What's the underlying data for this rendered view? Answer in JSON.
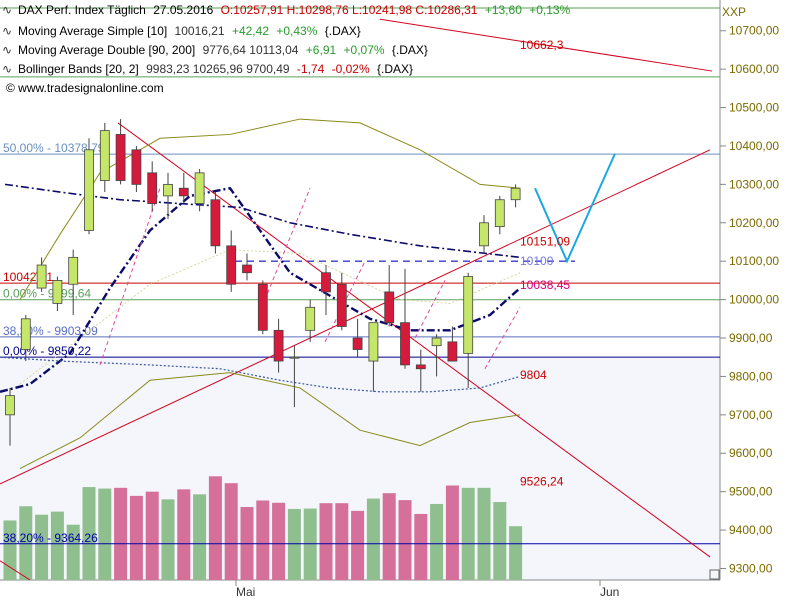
{
  "instrument": {
    "name": "DAX Perf. Index Täglich",
    "date": "27.05.2016",
    "ohlc": "O:10257,91  H:10298,76  L:10241,98  C:10286,31",
    "change": "+13,60",
    "change_pct": "+0,13%",
    "symbol": "XXP"
  },
  "indicators": [
    {
      "name": "Moving Average Simple [10]",
      "values": "10016,21",
      "change": "+42,42",
      "pct": "+0,43%",
      "sym": "{.DAX}",
      "icon": "wave-icon"
    },
    {
      "name": "Moving Average Double [90, 200]",
      "values": "9776,64  10113,04",
      "change": "+6,91",
      "pct": "+0,07%",
      "sym": "{.DAX}",
      "icon": "wave-icon"
    },
    {
      "name": "Bollinger Bands [20, 2]",
      "values": "9983,23  10265,96  9700,49",
      "change": "-1,74",
      "pct": "-0,02%",
      "sym": "{.DAX}",
      "icon": "wave-icon"
    }
  ],
  "source": "© www.tradesignalonline.com",
  "colors": {
    "up": "#c6e66a",
    "down": "#d61a3c",
    "vol_up": "#8fbf8f",
    "vol_down": "#d4709a",
    "axis_text": "#7a6a00",
    "trend": "#d6001c",
    "forecast": "#1ca8e0"
  },
  "chart_data": {
    "type": "candlestick",
    "yaxis": {
      "ticks": [
        "10700,00",
        "10600,00",
        "10500,00",
        "10400,00",
        "10300,00",
        "10200,00",
        "10100,00",
        "10000,00",
        "9900,00",
        "9800,00",
        "9700,00",
        "9600,00",
        "9500,00",
        "9400,00",
        "9300,00"
      ],
      "range": [
        9270,
        10780
      ]
    },
    "xaxis": {
      "labels": [
        "Mai",
        "Jun"
      ]
    },
    "candles": [
      {
        "o": 9700,
        "h": 9770,
        "l": 9620,
        "c": 9750
      },
      {
        "o": 9870,
        "h": 9960,
        "l": 9840,
        "c": 9950
      },
      {
        "o": 10030,
        "h": 10110,
        "l": 10020,
        "c": 10090
      },
      {
        "o": 9990,
        "h": 10060,
        "l": 9970,
        "c": 10050
      },
      {
        "o": 10040,
        "h": 10130,
        "l": 9960,
        "c": 10110
      },
      {
        "o": 10180,
        "h": 10420,
        "l": 10170,
        "c": 10390
      },
      {
        "o": 10310,
        "h": 10460,
        "l": 10280,
        "c": 10440
      },
      {
        "o": 10430,
        "h": 10470,
        "l": 10300,
        "c": 10310
      },
      {
        "o": 10390,
        "h": 10400,
        "l": 10280,
        "c": 10300
      },
      {
        "o": 10330,
        "h": 10360,
        "l": 10230,
        "c": 10250
      },
      {
        "o": 10270,
        "h": 10330,
        "l": 10210,
        "c": 10300
      },
      {
        "o": 10290,
        "h": 10330,
        "l": 10250,
        "c": 10270
      },
      {
        "o": 10250,
        "h": 10340,
        "l": 10230,
        "c": 10330
      },
      {
        "o": 10260,
        "h": 10280,
        "l": 10120,
        "c": 10140
      },
      {
        "o": 10140,
        "h": 10180,
        "l": 10020,
        "c": 10040
      },
      {
        "o": 10090,
        "h": 10120,
        "l": 10050,
        "c": 10070
      },
      {
        "o": 10040,
        "h": 10050,
        "l": 9910,
        "c": 9920
      },
      {
        "o": 9920,
        "h": 9950,
        "l": 9810,
        "c": 9840
      },
      {
        "o": 9850,
        "h": 9880,
        "l": 9720,
        "c": 9850
      },
      {
        "o": 9920,
        "h": 10000,
        "l": 9890,
        "c": 9980
      },
      {
        "o": 10070,
        "h": 10090,
        "l": 9960,
        "c": 10020
      },
      {
        "o": 10040,
        "h": 10070,
        "l": 9920,
        "c": 9930
      },
      {
        "o": 9900,
        "h": 9950,
        "l": 9850,
        "c": 9870
      },
      {
        "o": 9840,
        "h": 9940,
        "l": 9760,
        "c": 9940
      },
      {
        "o": 10020,
        "h": 10090,
        "l": 9930,
        "c": 9940
      },
      {
        "o": 9940,
        "h": 10080,
        "l": 9820,
        "c": 9830
      },
      {
        "o": 9830,
        "h": 9870,
        "l": 9760,
        "c": 9820
      },
      {
        "o": 9880,
        "h": 9910,
        "l": 9800,
        "c": 9900
      },
      {
        "o": 9890,
        "h": 9930,
        "l": 9840,
        "c": 9840
      },
      {
        "o": 9860,
        "h": 10070,
        "l": 9770,
        "c": 10060
      },
      {
        "o": 10140,
        "h": 10220,
        "l": 10120,
        "c": 10200
      },
      {
        "o": 10190,
        "h": 10270,
        "l": 10170,
        "c": 10260
      },
      {
        "o": 10260,
        "h": 10300,
        "l": 10240,
        "c": 10290
      }
    ],
    "volume": {
      "range": [
        9270,
        9520
      ],
      "values": [
        9425,
        9462,
        9440,
        9448,
        9414,
        9512,
        9508,
        9510,
        9489,
        9500,
        9480,
        9506,
        9493,
        9540,
        9522,
        9460,
        9477,
        9471,
        9455,
        9456,
        9470,
        9470,
        9450,
        9482,
        9496,
        9478,
        9442,
        9468,
        9516,
        9510,
        9510,
        9473,
        9410
      ]
    },
    "levels": [
      {
        "label": "50,00% - 10378,79",
        "value": 10378.79,
        "color": "#6a8fbf"
      },
      {
        "label": "10042,91",
        "value": 10042.91,
        "color": "#c80000"
      },
      {
        "label": "0,00% - 9999,64",
        "value": 9999.64,
        "color": "#5aa05a"
      },
      {
        "label": "38,20% - 9903,09",
        "value": 9903.09,
        "color": "#5a6fbf"
      },
      {
        "label": "0,00% - 9850,22",
        "value": 9850.22,
        "color": "#00008b"
      },
      {
        "label": "38,20% - 9364,26",
        "value": 9364.26,
        "color": "#0000aa"
      }
    ],
    "annotations": [
      {
        "text": "10662,3",
        "value": 10662.3,
        "color": "#c80000"
      },
      {
        "text": "10151,09",
        "value": 10151.09,
        "color": "#c80000"
      },
      {
        "text": "10100",
        "value": 10100,
        "color": "#7a7ae0"
      },
      {
        "text": "10038,45",
        "value": 10038.45,
        "color": "#d4007a"
      },
      {
        "text": "9804",
        "value": 9804,
        "color": "#c80000"
      },
      {
        "text": "9526,24",
        "value": 9526.24,
        "color": "#c80000"
      }
    ]
  }
}
